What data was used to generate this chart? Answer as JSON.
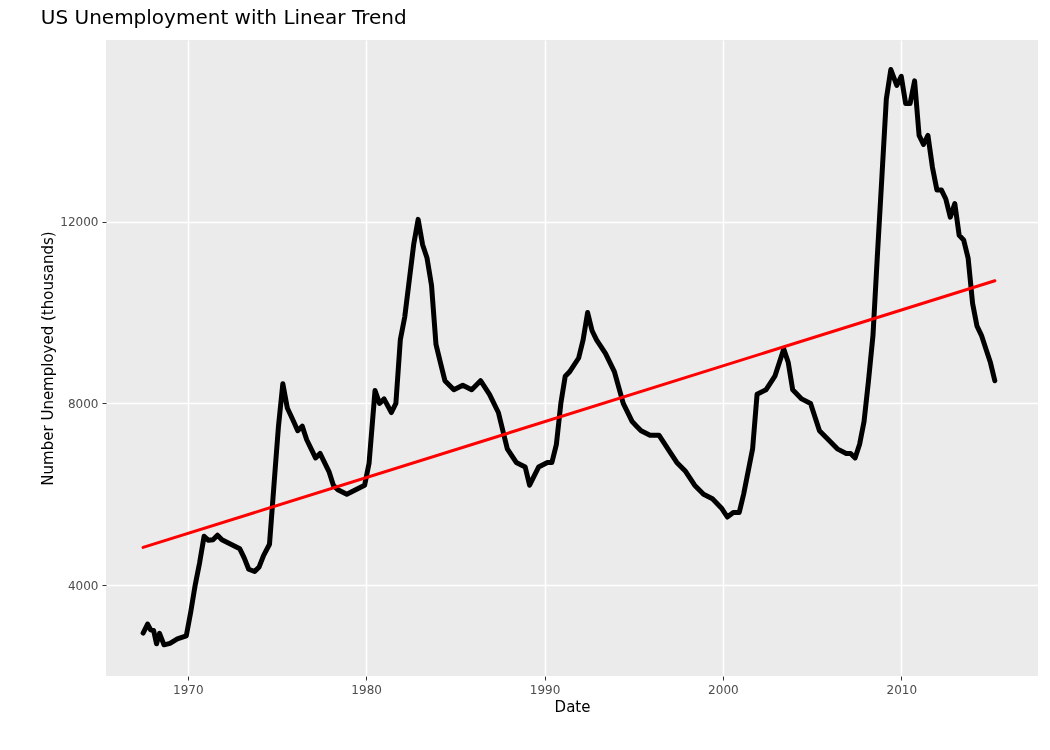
{
  "chart_data": {
    "type": "line",
    "title": "US Unemployment with Linear Trend",
    "xlabel": "Date",
    "ylabel": "Number Unemployed (thousands)",
    "xlim": [
      "1965-06",
      "2017-09"
    ],
    "ylim": [
      2000,
      16000
    ],
    "xticks": [
      "1970",
      "1980",
      "1990",
      "2000",
      "2010"
    ],
    "yticks": [
      4000,
      8000,
      12000
    ],
    "grid": true,
    "series": [
      {
        "color": "#000000",
        "x": [
          "1967-07",
          "1967-10",
          "1967-12",
          "1968-02",
          "1968-04",
          "1968-06",
          "1968-09",
          "1969-01",
          "1969-06",
          "1969-12",
          "1970-03",
          "1970-06",
          "1970-09",
          "1970-12",
          "1971-03",
          "1971-06",
          "1971-09",
          "1971-12",
          "1972-03",
          "1972-06",
          "1972-12",
          "1973-03",
          "1973-06",
          "1973-10",
          "1974-01",
          "1974-04",
          "1974-08",
          "1974-12",
          "1975-02",
          "1975-05",
          "1975-08",
          "1975-12",
          "1976-03",
          "1976-06",
          "1976-09",
          "1976-12",
          "1977-03",
          "1977-06",
          "1977-12",
          "1978-03",
          "1978-06",
          "1978-12",
          "1979-06",
          "1979-12",
          "1980-03",
          "1980-07",
          "1980-10",
          "1981-01",
          "1981-06",
          "1981-09",
          "1981-12",
          "1982-03",
          "1982-06",
          "1982-09",
          "1982-12",
          "1983-03",
          "1983-06",
          "1983-09",
          "1983-12",
          "1984-03",
          "1984-06",
          "1984-12",
          "1985-06",
          "1985-12",
          "1986-06",
          "1986-12",
          "1987-06",
          "1987-12",
          "1988-06",
          "1988-12",
          "1989-03",
          "1989-09",
          "1990-03",
          "1990-06",
          "1990-09",
          "1990-12",
          "1991-03",
          "1991-06",
          "1991-12",
          "1992-03",
          "1992-06",
          "1992-09",
          "1992-12",
          "1993-06",
          "1993-12",
          "1994-06",
          "1994-12",
          "1995-03",
          "1995-06",
          "1995-12",
          "1996-06",
          "1996-12",
          "1997-06",
          "1997-12",
          "1998-06",
          "1998-12",
          "1999-06",
          "1999-12",
          "2000-04",
          "2000-08",
          "2000-12",
          "2001-03",
          "2001-06",
          "2001-09",
          "2001-12",
          "2002-06",
          "2002-12",
          "2003-06",
          "2003-09",
          "2003-12",
          "2004-06",
          "2004-12",
          "2005-06",
          "2005-12",
          "2006-06",
          "2006-12",
          "2007-03",
          "2007-06",
          "2007-09",
          "2007-12",
          "2008-03",
          "2008-06",
          "2008-09",
          "2008-12",
          "2009-03",
          "2009-06",
          "2009-10",
          "2010-01",
          "2010-04",
          "2010-07",
          "2010-10",
          "2011-01",
          "2011-04",
          "2011-07",
          "2011-10",
          "2012-01",
          "2012-04",
          "2012-07",
          "2012-10",
          "2013-01",
          "2013-04",
          "2013-07",
          "2013-10",
          "2014-01",
          "2014-04",
          "2014-07",
          "2014-10",
          "2015-01",
          "2015-04"
        ],
        "values": [
          2944,
          3143,
          3018,
          3001,
          2709,
          2938,
          2686,
          2718,
          2816,
          2884,
          3400,
          4000,
          4500,
          5076,
          4986,
          5000,
          5100,
          5000,
          4950,
          4900,
          4800,
          4600,
          4350,
          4300,
          4400,
          4650,
          4900,
          6636,
          7500,
          8433,
          7900,
          7620,
          7400,
          7500,
          7200,
          7000,
          6800,
          6900,
          6500,
          6200,
          6100,
          6000,
          6100,
          6200,
          6683,
          8283,
          8000,
          8100,
          7800,
          8000,
          9400,
          9900,
          10700,
          11500,
          12051,
          11500,
          11200,
          10600,
          9300,
          8900,
          8500,
          8300,
          8400,
          8300,
          8500,
          8200,
          7800,
          7000,
          6700,
          6600,
          6200,
          6600,
          6700,
          6700,
          7100,
          8000,
          8600,
          8700,
          9000,
          9400,
          10000,
          9600,
          9400,
          9100,
          8700,
          8000,
          7600,
          7500,
          7400,
          7300,
          7300,
          7000,
          6700,
          6500,
          6200,
          6000,
          5900,
          5700,
          5500,
          5600,
          5600,
          6000,
          6500,
          7000,
          8200,
          8300,
          8600,
          9200,
          8900,
          8300,
          8100,
          8000,
          7400,
          7200,
          7000,
          6900,
          6900,
          6800,
          7100,
          7600,
          8500,
          9500,
          11300,
          13000,
          14700,
          15350,
          15000,
          15200,
          14600,
          14600,
          15100,
          13900,
          13700,
          13900,
          13200,
          12700,
          12700,
          12500,
          12100,
          12400,
          11700,
          11600,
          11200,
          10200,
          9700,
          9500,
          9200,
          8900,
          8500
        ]
      },
      {
        "type": "line",
        "color": "#ff0000",
        "x": [
          "1967-07",
          "2015-04"
        ],
        "values": [
          4830,
          10700
        ]
      }
    ]
  }
}
